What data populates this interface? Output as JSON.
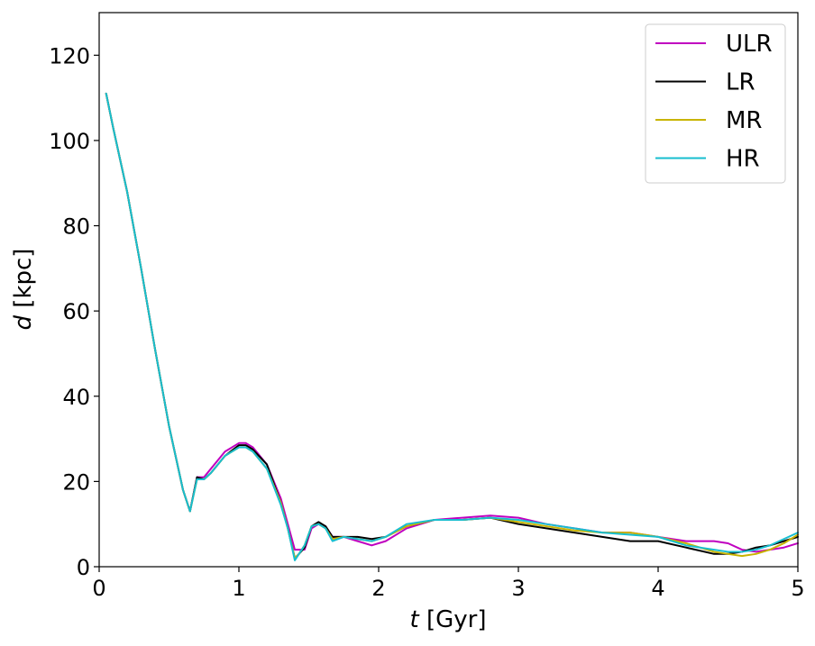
{
  "chart_data": {
    "type": "line",
    "title": "",
    "xlabel": {
      "var": "t",
      "unit": " [Gyr]"
    },
    "ylabel": {
      "var": "d",
      "unit": " [kpc]"
    },
    "xlim": [
      0,
      5
    ],
    "ylim": [
      0,
      130
    ],
    "xticks": [
      0,
      1,
      2,
      3,
      4,
      5
    ],
    "yticks": [
      0,
      20,
      40,
      60,
      80,
      100,
      120
    ],
    "grid": false,
    "legend_position": "top-right",
    "series": [
      {
        "name": "ULR",
        "color": "#c000c0",
        "x": [
          0.05,
          0.1,
          0.2,
          0.3,
          0.4,
          0.5,
          0.6,
          0.65,
          0.7,
          0.75,
          0.8,
          0.9,
          1.0,
          1.05,
          1.1,
          1.2,
          1.3,
          1.35,
          1.4,
          1.43,
          1.47,
          1.52,
          1.57,
          1.62,
          1.67,
          1.75,
          1.85,
          1.95,
          2.05,
          2.2,
          2.4,
          2.6,
          2.8,
          3.0,
          3.2,
          3.4,
          3.6,
          3.8,
          4.0,
          4.2,
          4.4,
          4.5,
          4.6,
          4.7,
          4.8,
          4.9,
          5.0
        ],
        "y": [
          111,
          103,
          88,
          70,
          51,
          33,
          18,
          13,
          21,
          21,
          23,
          27,
          29,
          29,
          28,
          24,
          16,
          10,
          4,
          4,
          4,
          9,
          10,
          9.5,
          7,
          7,
          6,
          5,
          6,
          9,
          11,
          11.5,
          12,
          11.5,
          10,
          9,
          8,
          8,
          7,
          6,
          6,
          5.5,
          4,
          3.5,
          4,
          4.5,
          5.5
        ]
      },
      {
        "name": "LR",
        "color": "#000000",
        "x": [
          0.05,
          0.1,
          0.2,
          0.3,
          0.4,
          0.5,
          0.6,
          0.65,
          0.7,
          0.75,
          0.8,
          0.9,
          1.0,
          1.05,
          1.1,
          1.2,
          1.3,
          1.35,
          1.4,
          1.43,
          1.47,
          1.52,
          1.57,
          1.62,
          1.67,
          1.75,
          1.85,
          1.95,
          2.05,
          2.2,
          2.4,
          2.6,
          2.8,
          3.0,
          3.2,
          3.4,
          3.6,
          3.8,
          4.0,
          4.2,
          4.4,
          4.5,
          4.6,
          4.7,
          4.8,
          4.9,
          5.0
        ],
        "y": [
          111,
          103,
          88,
          70,
          51,
          33,
          18,
          13,
          21,
          20.5,
          22,
          26,
          28.5,
          28.5,
          27.5,
          24,
          15,
          9,
          2,
          3,
          4.5,
          9.5,
          10.5,
          9.5,
          7,
          7,
          7,
          6.5,
          7,
          9.5,
          11,
          11,
          11.5,
          10,
          9,
          8,
          7,
          6,
          6,
          4.5,
          3,
          3,
          3.5,
          4.5,
          5,
          6,
          7
        ]
      },
      {
        "name": "MR",
        "color": "#c8b400",
        "x": [
          0.05,
          0.1,
          0.2,
          0.3,
          0.4,
          0.5,
          0.6,
          0.65,
          0.7,
          0.75,
          0.8,
          0.9,
          1.0,
          1.05,
          1.1,
          1.2,
          1.3,
          1.35,
          1.4,
          1.43,
          1.47,
          1.52,
          1.57,
          1.62,
          1.67,
          1.75,
          1.85,
          1.95,
          2.05,
          2.2,
          2.4,
          2.6,
          2.8,
          3.0,
          3.2,
          3.4,
          3.6,
          3.8,
          4.0,
          4.2,
          4.4,
          4.5,
          4.6,
          4.7,
          4.8,
          4.9,
          5.0
        ],
        "y": [
          111,
          103,
          88,
          70,
          51,
          33,
          18,
          13,
          20.5,
          20.5,
          22,
          26,
          28,
          28,
          27,
          23,
          15,
          9,
          2,
          3,
          5,
          9.5,
          10,
          9,
          6.5,
          7,
          6.5,
          6,
          7,
          9.5,
          11,
          11,
          11.5,
          10.5,
          9.5,
          8.5,
          8,
          8,
          7,
          5.5,
          3.5,
          3,
          2.5,
          3,
          4,
          5.5,
          7.5
        ]
      },
      {
        "name": "HR",
        "color": "#17becf",
        "x": [
          0.05,
          0.1,
          0.2,
          0.3,
          0.4,
          0.5,
          0.6,
          0.65,
          0.7,
          0.75,
          0.8,
          0.9,
          1.0,
          1.05,
          1.1,
          1.2,
          1.3,
          1.35,
          1.4,
          1.43,
          1.47,
          1.52,
          1.57,
          1.62,
          1.67,
          1.75,
          1.85,
          1.95,
          2.05,
          2.2,
          2.4,
          2.6,
          2.8,
          3.0,
          3.2,
          3.4,
          3.6,
          3.8,
          4.0,
          4.2,
          4.4,
          4.5,
          4.6,
          4.7,
          4.8,
          4.9,
          5.0
        ],
        "y": [
          111,
          103,
          88,
          70,
          51,
          33,
          18,
          13,
          20.5,
          20.5,
          22,
          26,
          28,
          28,
          27,
          23,
          14.5,
          9,
          1.5,
          3,
          5,
          9.5,
          10,
          9,
          6,
          7,
          6.5,
          6,
          7,
          10,
          11,
          11,
          11.5,
          11,
          10,
          9,
          8,
          7.5,
          7,
          5,
          4,
          3.5,
          3.5,
          4,
          5,
          6.5,
          8
        ]
      }
    ]
  }
}
